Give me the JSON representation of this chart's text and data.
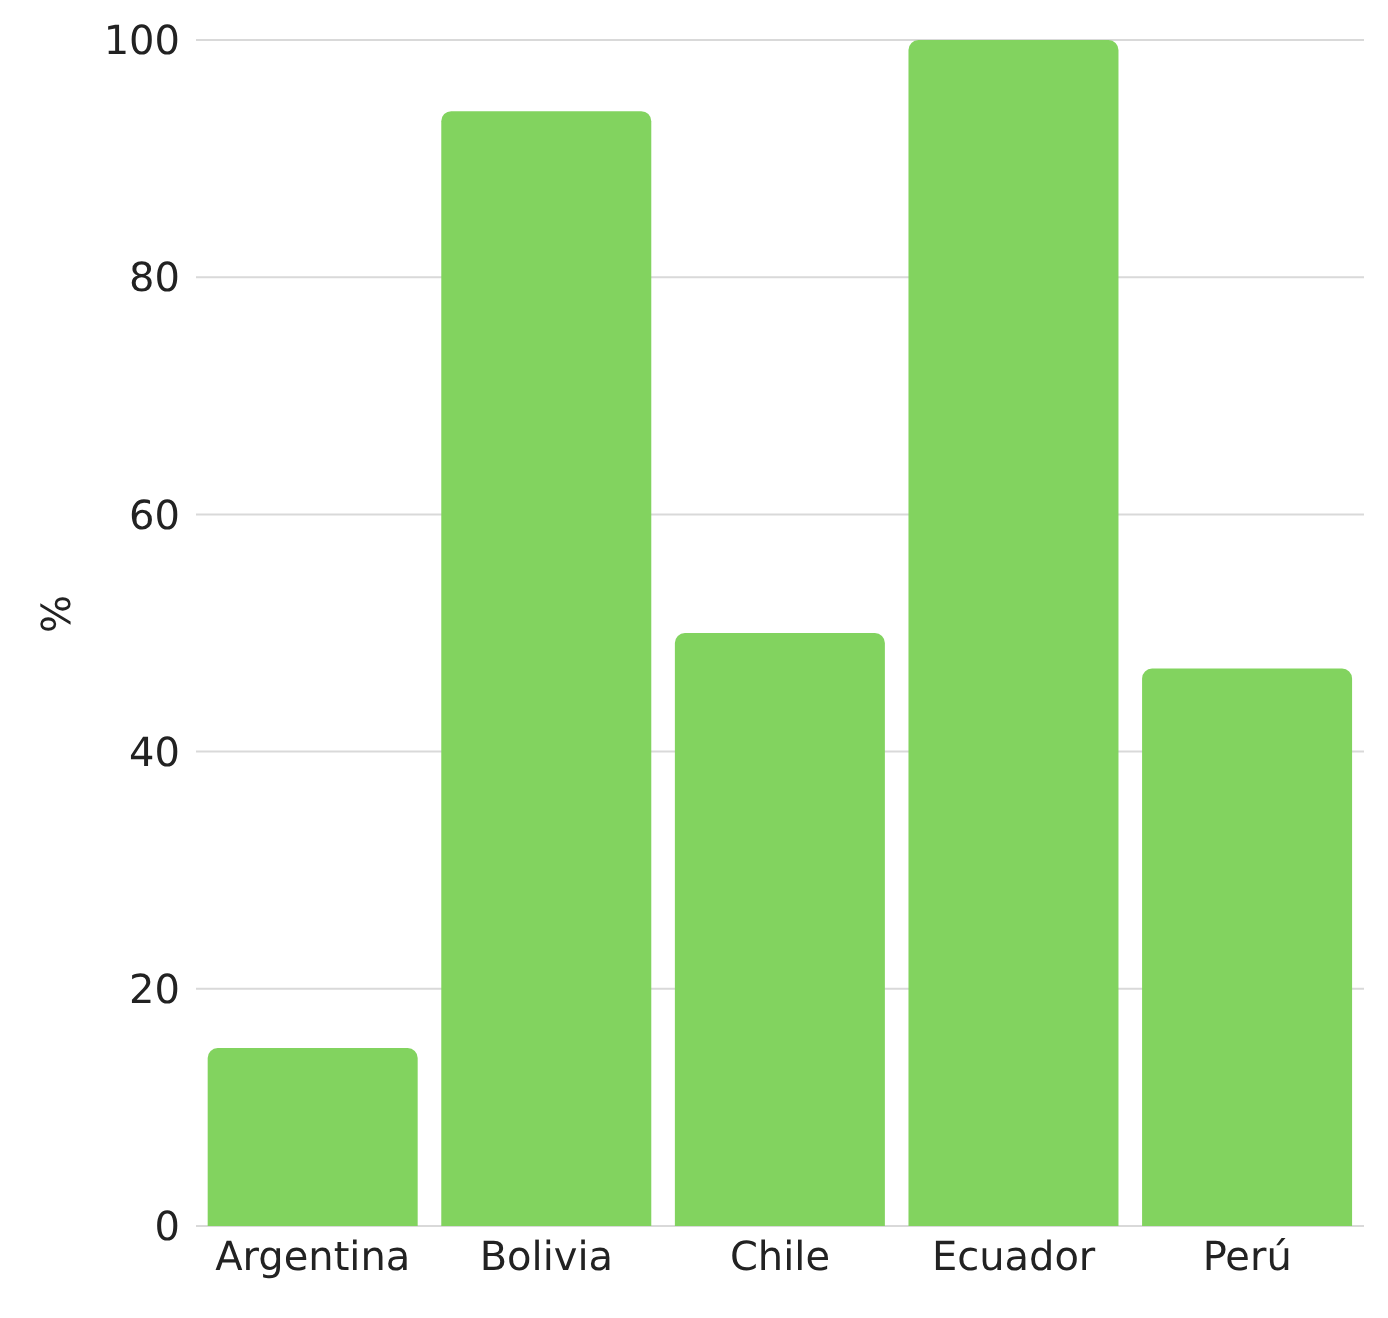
{
  "chart_data": {
    "type": "bar",
    "ylabel": "%",
    "categories": [
      "Argentina",
      "Bolivia",
      "Chile",
      "Ecuador",
      "Perú"
    ],
    "values": [
      15,
      94,
      50,
      100,
      47
    ],
    "color": "#82d35f",
    "ylim": [
      0,
      100
    ],
    "yticks": [
      0,
      20,
      40,
      60,
      80,
      100
    ],
    "grid": "y"
  }
}
